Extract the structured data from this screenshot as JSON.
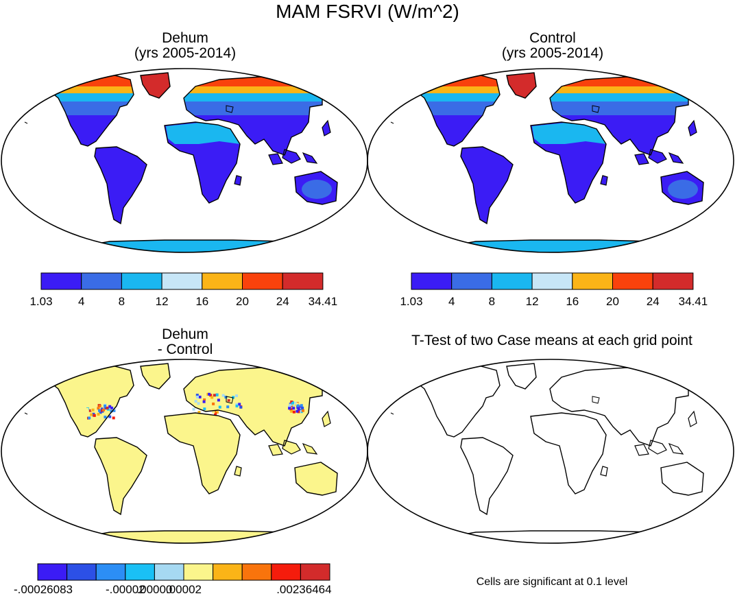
{
  "title": "MAM FSRVI (W/m^2)",
  "panels": {
    "dehum": {
      "title_line1": "Dehum",
      "title_line2": "(yrs 2005-2014)"
    },
    "control": {
      "title_line1": "Control",
      "title_line2": "(yrs 2005-2014)"
    },
    "diff": {
      "title_line1": "Dehum",
      "title_line2": "- Control"
    },
    "ttest": {
      "title": "T-Test of two Case means at each grid point",
      "note": "Cells are significant at 0.1 level"
    }
  },
  "colorbars": {
    "absolute": {
      "colors": [
        "#3b1cf5",
        "#3a6ce6",
        "#1ab7f0",
        "#c7e6f7",
        "#fbb417",
        "#f9420c",
        "#d32b2b"
      ],
      "labels": [
        "1.03",
        "4",
        "8",
        "12",
        "16",
        "20",
        "24",
        "34.41"
      ]
    },
    "difference": {
      "colors": [
        "#3b1cf5",
        "#2c50e6",
        "#2c8ef5",
        "#1ac0f5",
        "#a6d9f2",
        "#fbf58c",
        "#fbb417",
        "#f9740c",
        "#f51c0c",
        "#d32b2b"
      ],
      "labels": [
        "-.00026083",
        "-.00002",
        ".00000",
        ".00002",
        ".00236464"
      ]
    }
  },
  "map_colors": {
    "tropics": "#3b1cf5",
    "midlat": "#3a6ce6",
    "arid": "#1ab7f0",
    "antarctic": "#1ab7f0",
    "boreal": "#fbb417",
    "arctic": "#f9420c",
    "greenland": "#d32b2b",
    "difference_fill": "#fbf58c"
  }
}
